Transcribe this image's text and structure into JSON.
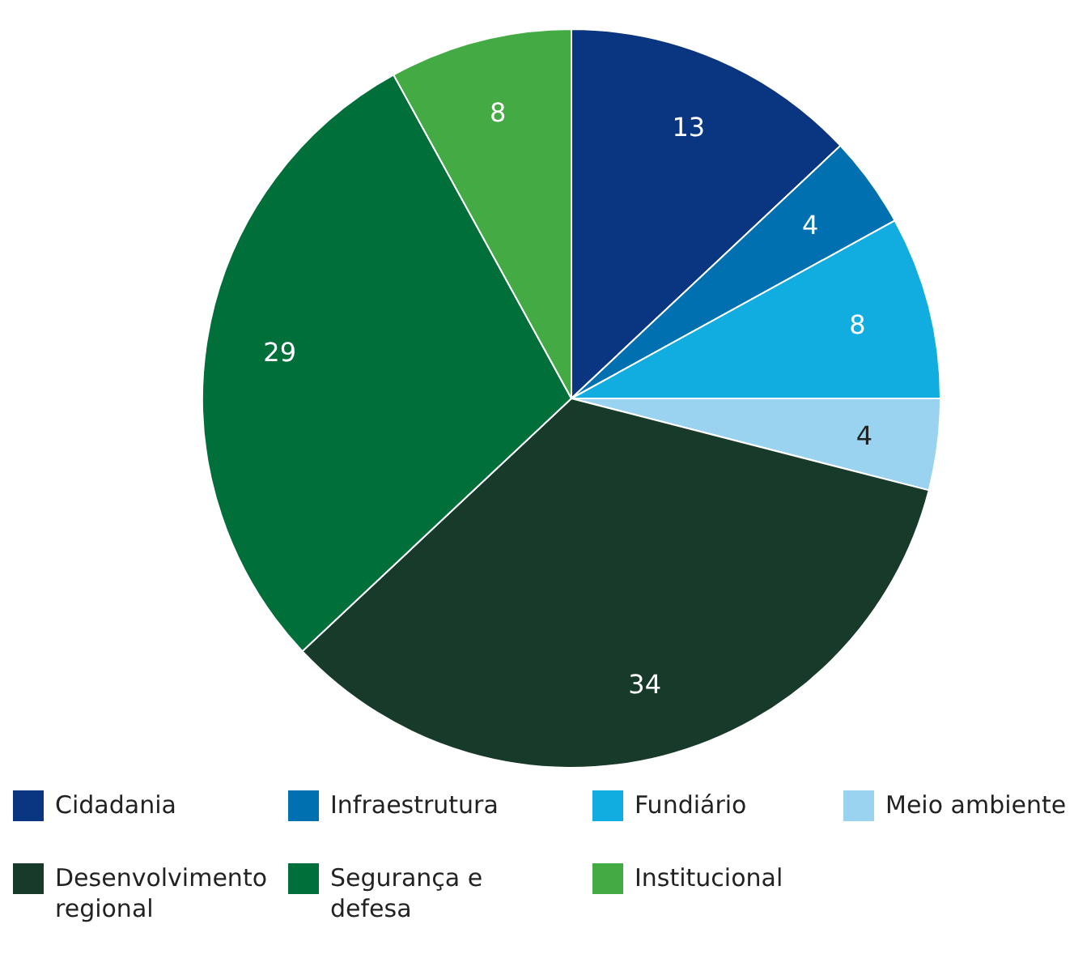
{
  "chart_data": {
    "type": "pie",
    "categories": [
      "Cidadania",
      "Infraestrutura",
      "Fundiário",
      "Meio ambiente",
      "Desenvolvimento regional",
      "Segurança e defesa",
      "Institucional"
    ],
    "values": [
      13,
      4,
      8,
      4,
      34,
      29,
      8
    ],
    "colors": [
      "#0a3580",
      "#0170b0",
      "#12ade0",
      "#99d3ef",
      "#183a2b",
      "#006f3a",
      "#44aa44"
    ],
    "data_labels": true,
    "legend": "bottom"
  }
}
